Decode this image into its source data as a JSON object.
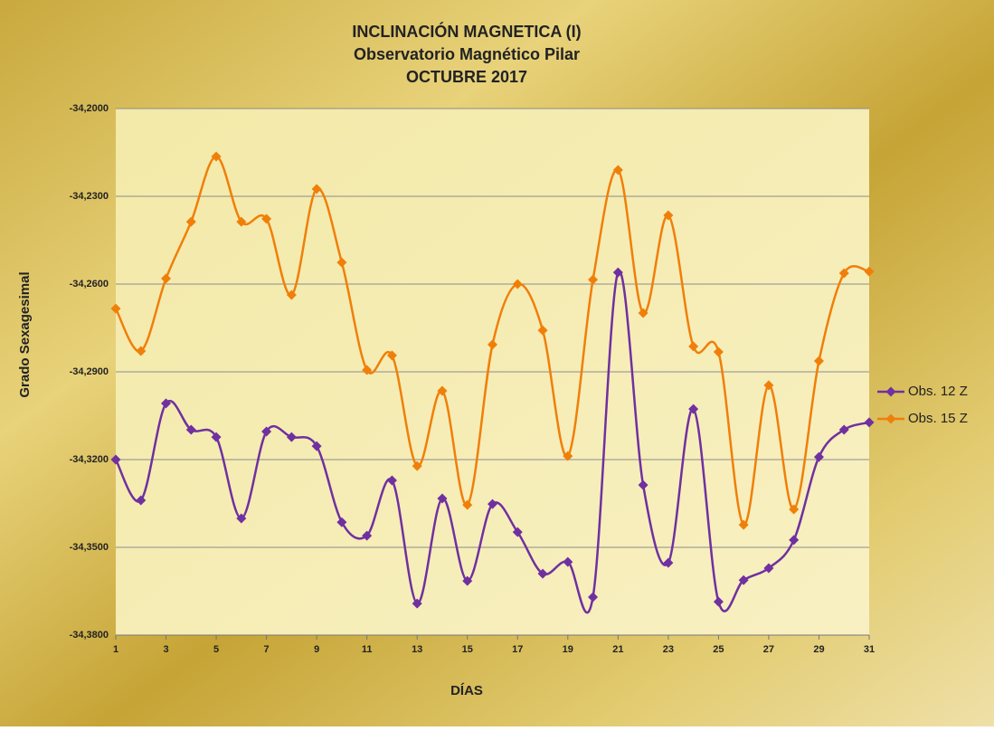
{
  "chart_data": {
    "type": "line",
    "title": "INCLINACIÓN MAGNETICA (I)",
    "subtitle": "Observatorio  Magnético Pilar",
    "subtitle2": "OCTUBRE 2017",
    "x_label": "DÍAS",
    "y_label": "Grado Sexagesimal",
    "x": [
      1,
      2,
      3,
      4,
      5,
      6,
      7,
      8,
      9,
      10,
      11,
      12,
      13,
      14,
      15,
      16,
      17,
      18,
      19,
      20,
      21,
      22,
      23,
      24,
      25,
      26,
      27,
      28,
      29,
      30,
      31
    ],
    "xlim": [
      1,
      31
    ],
    "xticks": [
      1,
      3,
      5,
      7,
      9,
      11,
      13,
      15,
      17,
      19,
      21,
      23,
      25,
      27,
      29,
      31
    ],
    "ylim": [
      -34.38,
      -34.2
    ],
    "yticks": [
      {
        "value": -34.2,
        "label": "-34,2000"
      },
      {
        "value": -34.23,
        "label": "-34,2300"
      },
      {
        "value": -34.26,
        "label": "-34,2600"
      },
      {
        "value": -34.29,
        "label": "-34,2900"
      },
      {
        "value": -34.32,
        "label": "-34,3200"
      },
      {
        "value": -34.35,
        "label": "-34,3500"
      },
      {
        "value": -34.38,
        "label": "-34,3800"
      }
    ],
    "grid": true,
    "smooth": true,
    "legend": "right",
    "series": [
      {
        "name": "Obs. 12 Z",
        "color": "#7030a0",
        "values": [
          -34.32,
          -34.3339,
          -34.3008,
          -34.3098,
          -34.3123,
          -34.3401,
          -34.3104,
          -34.3123,
          -34.3154,
          -34.3414,
          -34.346,
          -34.3271,
          -34.3692,
          -34.3333,
          -34.3615,
          -34.3352,
          -34.3448,
          -34.359,
          -34.355,
          -34.367,
          -34.256,
          -34.3287,
          -34.3553,
          -34.3027,
          -34.3686,
          -34.3612,
          -34.3571,
          -34.3475,
          -34.3191,
          -34.3098,
          -34.3073
        ]
      },
      {
        "name": "Obs. 15 Z",
        "color": "#f07f09",
        "values": [
          -34.2684,
          -34.2829,
          -34.2581,
          -34.2387,
          -34.2164,
          -34.2387,
          -34.2377,
          -34.2637,
          -34.2275,
          -34.2526,
          -34.2894,
          -34.2844,
          -34.3222,
          -34.2965,
          -34.3355,
          -34.2807,
          -34.26,
          -34.2758,
          -34.3188,
          -34.2585,
          -34.221,
          -34.2699,
          -34.2365,
          -34.2813,
          -34.2832,
          -34.3423,
          -34.2946,
          -34.337,
          -34.2863,
          -34.2563,
          -34.2557
        ]
      }
    ]
  }
}
